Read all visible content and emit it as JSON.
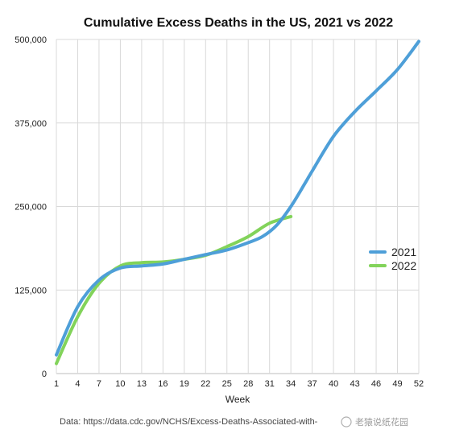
{
  "chart_data": {
    "type": "line",
    "title": "Cumulative Excess Deaths in the US, 2021 vs 2022",
    "xlabel": "Week",
    "ylabel": "",
    "xlim": [
      1,
      52
    ],
    "ylim": [
      0,
      500000
    ],
    "x_ticks": [
      "1",
      "4",
      "7",
      "10",
      "13",
      "16",
      "19",
      "22",
      "25",
      "28",
      "31",
      "34",
      "37",
      "40",
      "43",
      "46",
      "49",
      "52"
    ],
    "y_ticks": [
      "0",
      "125,000",
      "250,000",
      "375,000",
      "500,000"
    ],
    "grid": true,
    "legend_position": "right",
    "series": [
      {
        "name": "2021",
        "color": "#4e9fd8",
        "points": [
          [
            1,
            28000
          ],
          [
            4,
            100000
          ],
          [
            7,
            140000
          ],
          [
            10,
            158000
          ],
          [
            13,
            161000
          ],
          [
            16,
            164000
          ],
          [
            19,
            171000
          ],
          [
            22,
            178000
          ],
          [
            25,
            185000
          ],
          [
            28,
            196000
          ],
          [
            30,
            205000
          ],
          [
            32,
            222000
          ],
          [
            34,
            250000
          ],
          [
            36,
            285000
          ],
          [
            37,
            303000
          ],
          [
            40,
            355000
          ],
          [
            43,
            392000
          ],
          [
            46,
            423000
          ],
          [
            49,
            455000
          ],
          [
            52,
            497000
          ]
        ]
      },
      {
        "name": "2022",
        "color": "#82d35a",
        "points": [
          [
            1,
            15000
          ],
          [
            4,
            85000
          ],
          [
            7,
            135000
          ],
          [
            10,
            161000
          ],
          [
            13,
            166000
          ],
          [
            16,
            167000
          ],
          [
            19,
            171000
          ],
          [
            22,
            177000
          ],
          [
            25,
            190000
          ],
          [
            28,
            205000
          ],
          [
            31,
            225000
          ],
          [
            34,
            235000
          ]
        ]
      }
    ]
  },
  "footer": {
    "source": "Data: https://data.cdc.gov/NCHS/Excess-Deaths-Associated-with-",
    "watermark": "老猿说纸花园"
  }
}
